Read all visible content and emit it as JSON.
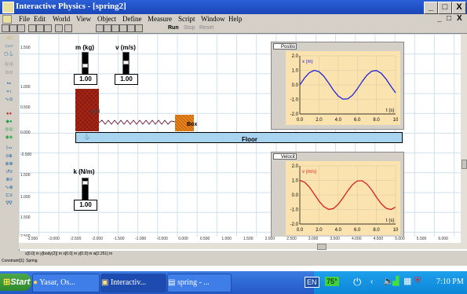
{
  "window": {
    "title": "Interactive Physics - [spring2]",
    "buttons": {
      "minimize": "_",
      "restore": "□",
      "close": "X"
    }
  },
  "menu": {
    "items": [
      "File",
      "Edit",
      "World",
      "View",
      "Object",
      "Define",
      "Measure",
      "Script",
      "Window",
      "Help"
    ]
  },
  "toolbar": {
    "run_label": "Run",
    "stop_label": "Stop",
    "reset_label": "Reset"
  },
  "rulers": {
    "left": [
      "1.500",
      "1.000",
      "0.500",
      "0.000",
      "-0.500",
      "1.500",
      "1.000",
      "1.500",
      "2.000",
      "2.500"
    ],
    "bottom": [
      "-3.500",
      "-3.000",
      "-2.500",
      "-2.000",
      "-1.500",
      "-1.000",
      "-0.500",
      "0.000",
      "0.500",
      "1.000",
      "1.500",
      "2.000",
      "2.500",
      "3.000",
      "3.500",
      "4.000",
      "4.500",
      "5.000",
      "5.500",
      "6.000"
    ]
  },
  "controls": {
    "mass": {
      "label": "m (kg)",
      "value": "1.00"
    },
    "velocity": {
      "label": "v (m/s)",
      "value": "1.00"
    },
    "spring_k": {
      "label": "k (N/m)",
      "value": "1.00"
    }
  },
  "objects": {
    "wall": "Wall",
    "box": "Box",
    "floor": "Floor"
  },
  "graphs": {
    "position": {
      "title": "Positio",
      "ylabel": "x (m)",
      "xlabel": "t (s)",
      "color": "#2323d8"
    },
    "velocity": {
      "title": "Velocit",
      "ylabel": "v (m/s)",
      "xlabel": "t (s)",
      "color": "#d81f1f"
    }
  },
  "chart_data": [
    {
      "type": "line",
      "series": [
        {
          "name": "x (m)",
          "x": [
            0,
            0.5,
            1,
            1.5,
            2,
            2.5,
            3,
            3.5,
            4,
            4.5,
            5,
            5.5,
            6,
            6.5,
            7,
            7.5,
            8,
            8.5,
            9,
            9.5,
            10
          ],
          "y": [
            0,
            0.48,
            0.84,
            1.0,
            0.91,
            0.6,
            0.14,
            -0.35,
            -0.76,
            -0.98,
            -0.96,
            -0.71,
            -0.28,
            0.22,
            0.66,
            0.94,
            0.99,
            0.8,
            0.41,
            -0.08,
            -0.54
          ]
        }
      ],
      "xlabel": "t (s)",
      "ylabel": "x (m)",
      "xlim": [
        0,
        10
      ],
      "ylim": [
        -2,
        2
      ],
      "xticks": [
        "0.0",
        "2.0",
        "4.0",
        "6.0",
        "8.0",
        "10"
      ],
      "yticks": [
        "2.0",
        "1.0",
        "0.0",
        "-1.0",
        "-2.0"
      ]
    },
    {
      "type": "line",
      "series": [
        {
          "name": "v (m/s)",
          "x": [
            0,
            0.5,
            1,
            1.5,
            2,
            2.5,
            3,
            3.5,
            4,
            4.5,
            5,
            5.5,
            6,
            6.5,
            7,
            7.5,
            8,
            8.5,
            9,
            9.5,
            10
          ],
          "y": [
            1.0,
            0.88,
            0.54,
            0.07,
            -0.42,
            -0.8,
            -0.99,
            -0.94,
            -0.65,
            -0.21,
            0.28,
            0.71,
            0.96,
            0.98,
            0.75,
            0.35,
            -0.15,
            -0.6,
            -0.91,
            -1.0,
            -0.84
          ]
        }
      ],
      "xlabel": "t (s)",
      "ylabel": "v (m/s)",
      "xlim": [
        0,
        10
      ],
      "ylim": [
        -2,
        2
      ],
      "xticks": [
        "0.0",
        "2.0",
        "4.0",
        "6.0",
        "8.0",
        "10"
      ],
      "yticks": [
        "2.0",
        "1.0",
        "0.0",
        "-1.0",
        "-2.0"
      ]
    }
  ],
  "coords_bar": "x[0.0]  m   y[body(2)]  m   x[0.0]  m   y[0.0]  m   w[2.251]  m",
  "status_bar": "Constraint[1]: Spring",
  "taskbar": {
    "start": "Start",
    "tasks": [
      "Yasar, Os...",
      "Interactiv...",
      "spring - ..."
    ],
    "tray": {
      "lang": "EN",
      "temp": "75°",
      "clock": "7:10 PM"
    }
  }
}
